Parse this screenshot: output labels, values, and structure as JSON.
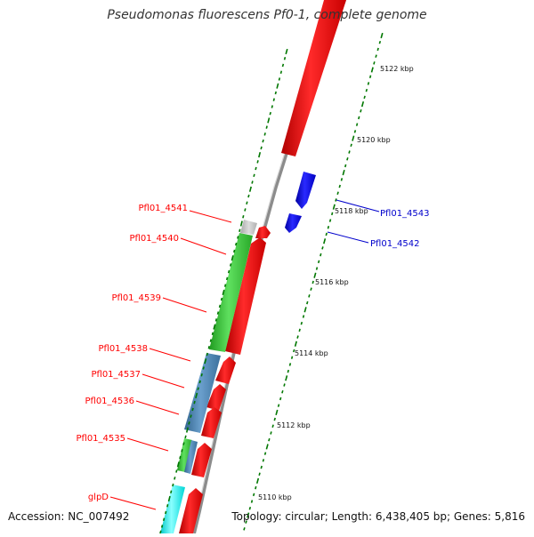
{
  "title": "Pseudomonas fluorescens Pf0-1, complete genome",
  "footer": {
    "accession": "Accession: NC_007492",
    "summary": "Topology: circular; Length: 6,438,405 bp; Genes: 5,816"
  },
  "ticks": [
    {
      "label": "5110 kbp"
    },
    {
      "label": "5112 kbp"
    },
    {
      "label": "5114 kbp"
    },
    {
      "label": "5116 kbp"
    },
    {
      "label": "5118 kbp"
    },
    {
      "label": "5120 kbp"
    },
    {
      "label": "5122 kbp"
    }
  ],
  "genes_left": [
    {
      "label": "Pfl01_4541"
    },
    {
      "label": "Pfl01_4540"
    },
    {
      "label": "Pfl01_4539"
    },
    {
      "label": "Pfl01_4538"
    },
    {
      "label": "Pfl01_4537"
    },
    {
      "label": "Pfl01_4536"
    },
    {
      "label": "Pfl01_4535"
    },
    {
      "label": "glpD"
    }
  ],
  "genes_right": [
    {
      "label": "Pfl01_4543"
    },
    {
      "label": "Pfl01_4542"
    }
  ],
  "colors": {
    "forward_gene": "#ff0000",
    "reverse_gene": "#0000ff",
    "cog_green": "#33cc33",
    "cog_steelblue": "#4682b4",
    "cog_cyan": "#00ffff",
    "cog_gray": "#c0c0c0",
    "tick_green": "#007700",
    "backbone": "#999999"
  }
}
